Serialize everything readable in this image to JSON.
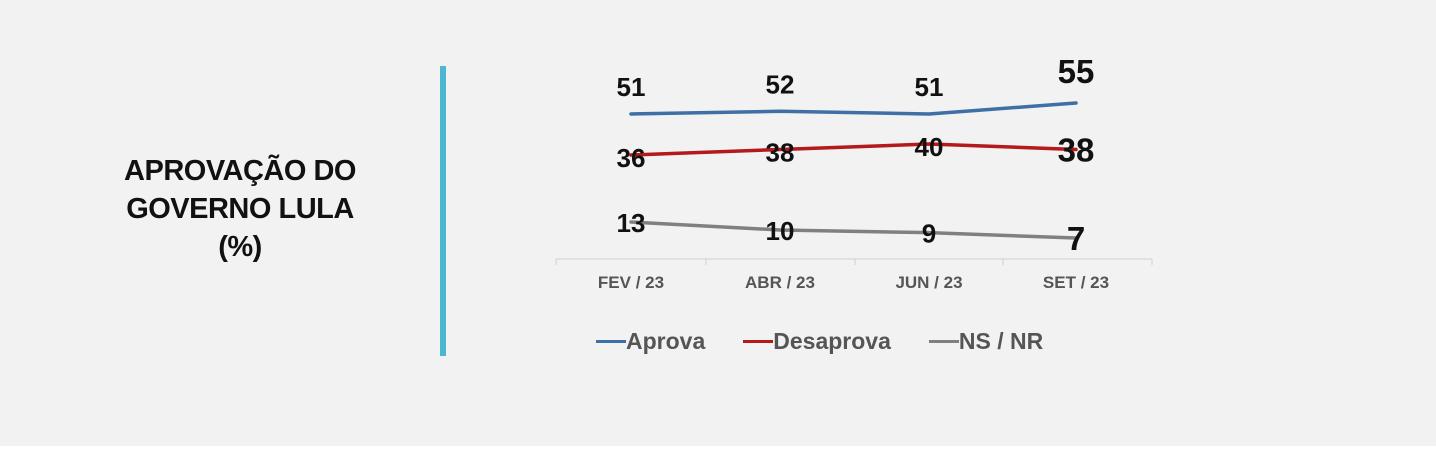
{
  "title_lines": [
    "APROVAÇÃO DO",
    "GOVERNO LULA",
    "(%)"
  ],
  "colors": {
    "divider": "#4bb8cf",
    "aprova": "#3e6fa5",
    "desaprova": "#b4191c",
    "nsnr": "#808080",
    "axis": "#d0d0d0",
    "text": "#111111",
    "tick_text": "#555555"
  },
  "chart_data": {
    "type": "line",
    "title": "APROVAÇÃO DO GOVERNO LULA (%)",
    "categories": [
      "FEV / 23",
      "ABR / 23",
      "JUN / 23",
      "SET / 23"
    ],
    "series": [
      {
        "name": "Aprova",
        "values": [
          51,
          52,
          51,
          55
        ],
        "color": "#3e6fa5"
      },
      {
        "name": "Desaprova",
        "values": [
          36,
          38,
          40,
          38
        ],
        "color": "#b4191c"
      },
      {
        "name": "NS / NR",
        "values": [
          13,
          10,
          9,
          7
        ],
        "color": "#808080"
      }
    ],
    "ylim": [
      0,
      60
    ],
    "grid": false,
    "legend_position": "bottom"
  }
}
